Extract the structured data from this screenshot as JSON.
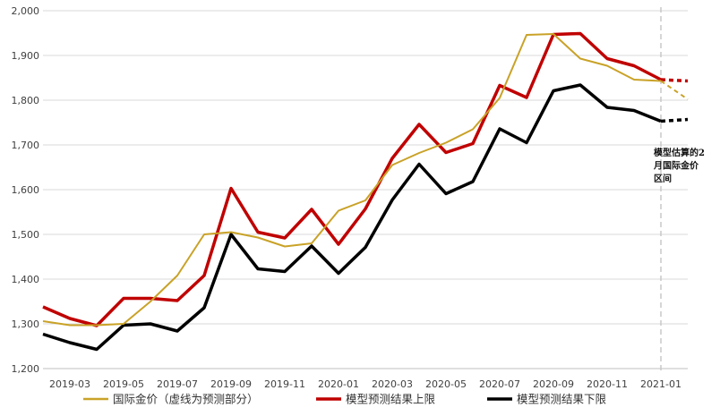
{
  "chart_data": {
    "type": "line",
    "title": "",
    "xlabel": "",
    "ylabel": "",
    "ylim": [
      1200,
      2000
    ],
    "yticks": [
      1200,
      1300,
      1400,
      1500,
      1600,
      1700,
      1800,
      1900,
      2000
    ],
    "ytick_labels": [
      "1,200",
      "1,300",
      "1,400",
      "1,500",
      "1,600",
      "1,700",
      "1,800",
      "1,900",
      "2,000"
    ],
    "x": [
      "2019-02",
      "2019-03",
      "2019-04",
      "2019-05",
      "2019-06",
      "2019-07",
      "2019-08",
      "2019-09",
      "2019-10",
      "2019-11",
      "2019-12",
      "2020-01",
      "2020-02",
      "2020-03",
      "2020-04",
      "2020-05",
      "2020-06",
      "2020-07",
      "2020-08",
      "2020-09",
      "2020-10",
      "2020-11",
      "2020-12",
      "2021-01",
      "2021-02"
    ],
    "xtick_labels": [
      "2019-03",
      "2019-05",
      "2019-07",
      "2019-09",
      "2019-11",
      "2020-01",
      "2020-03",
      "2020-05",
      "2020-07",
      "2020-09",
      "2020-11",
      "2021-01"
    ],
    "grid": "horizontal",
    "legend_position": "bottom",
    "series": [
      {
        "name": "国际金价（虚线为预测部分）",
        "color": "#C9A227",
        "values": [
          1306,
          1297,
          1297,
          1300,
          1350,
          1408,
          1500,
          1505,
          1493,
          1473,
          1480,
          1553,
          1576,
          1655,
          1682,
          1705,
          1735,
          1805,
          1946,
          1948,
          1893,
          1877,
          1846,
          1843,
          1802
        ],
        "forecast_from_index": 23
      },
      {
        "name": "模型预测结果上限",
        "color": "#C00000",
        "values": [
          1338,
          1312,
          1296,
          1357,
          1357,
          1352,
          1408,
          1603,
          1505,
          1492,
          1556,
          1478,
          1557,
          1670,
          1746,
          1683,
          1703,
          1833,
          1806,
          1947,
          1949,
          1893,
          1877,
          1846,
          1843
        ],
        "forecast_from_index": 23
      },
      {
        "name": "模型预测结果下限",
        "color": "#000000",
        "values": [
          1277,
          1258,
          1243,
          1297,
          1300,
          1284,
          1336,
          1500,
          1423,
          1417,
          1474,
          1413,
          1471,
          1577,
          1657,
          1591,
          1618,
          1736,
          1705,
          1821,
          1834,
          1784,
          1777,
          1753,
          1757
        ],
        "forecast_from_index": 23
      }
    ],
    "annotation": {
      "text_lines": [
        "模型估算的2",
        "月国际金价",
        "区间"
      ],
      "x": "2021-01"
    }
  }
}
